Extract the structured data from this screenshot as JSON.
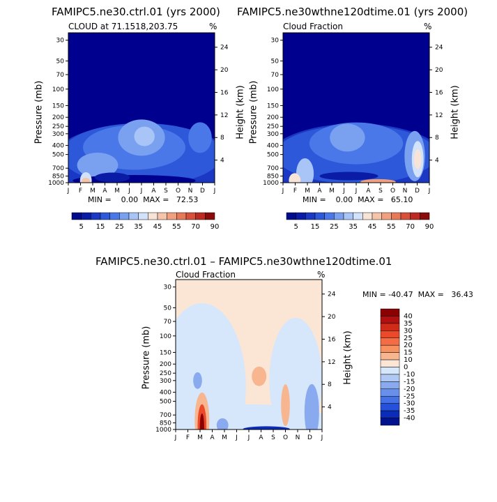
{
  "colors": {
    "background": "#ffffff",
    "saturated": "#00008f",
    "axis": "#000000"
  },
  "chart_data": [
    {
      "type": "heatmap",
      "title": "FAMIPC5.ne30.ctrl.01 (yrs 2000)",
      "subtitle_left": "CLOUD at 71.1518,203.75",
      "subtitle_right": "%",
      "ylabel": "Pressure (mb)",
      "ylabel_right": "Height (km)",
      "x_ticks": [
        "J",
        "F",
        "M",
        "A",
        "M",
        "J",
        "J",
        "A",
        "S",
        "O",
        "N",
        "D",
        "J"
      ],
      "y_ticks": [
        "30",
        "50",
        "70",
        "100",
        "150",
        "200",
        "250",
        "300",
        "400",
        "500",
        "700",
        "850",
        "1000"
      ],
      "y_ticks_right": [
        "24",
        "20",
        "16",
        "12",
        "8",
        "4"
      ],
      "min_max": "MIN =    0.00  MAX =   72.53",
      "colorbar": {
        "labels": [
          "5",
          "15",
          "25",
          "35",
          "45",
          "55",
          "70",
          "90"
        ],
        "colors": [
          "#000c8b",
          "#0a1ba5",
          "#1a38c4",
          "#2e58da",
          "#4a78e8",
          "#7aa0f0",
          "#a9c4f6",
          "#d3e2fb",
          "#f8e4d6",
          "#f6c4a8",
          "#f0a07e",
          "#e67a58",
          "#d6503a",
          "#bc2a22",
          "#8b0a0a"
        ]
      }
    },
    {
      "type": "heatmap",
      "title": "FAMIPC5.ne30wthne120dtime.01 (yrs 2000)",
      "subtitle_left": "Cloud Fraction",
      "subtitle_right": "%",
      "ylabel": "Pressure (mb)",
      "ylabel_right": "Height (km)",
      "x_ticks": [
        "J",
        "F",
        "M",
        "A",
        "M",
        "J",
        "J",
        "A",
        "S",
        "O",
        "N",
        "D",
        "J"
      ],
      "y_ticks": [
        "30",
        "50",
        "70",
        "100",
        "150",
        "200",
        "250",
        "300",
        "400",
        "500",
        "700",
        "850",
        "1000"
      ],
      "y_ticks_right": [
        "24",
        "20",
        "16",
        "12",
        "8",
        "4"
      ],
      "min_max": "MIN =    0.00  MAX =   65.10",
      "colorbar": {
        "labels": [
          "5",
          "15",
          "25",
          "35",
          "45",
          "55",
          "70",
          "90"
        ],
        "colors": [
          "#000c8b",
          "#0a1ba5",
          "#1a38c4",
          "#2e58da",
          "#4a78e8",
          "#7aa0f0",
          "#a9c4f6",
          "#d3e2fb",
          "#f8e4d6",
          "#f6c4a8",
          "#f0a07e",
          "#e67a58",
          "#d6503a",
          "#bc2a22",
          "#8b0a0a"
        ]
      }
    },
    {
      "type": "heatmap",
      "title": "FAMIPC5.ne30.ctrl.01 – FAMIPC5.ne30wthne120dtime.01",
      "subtitle_left": "Cloud Fraction",
      "subtitle_right": "%",
      "ylabel": "Pressure (mb)",
      "ylabel_right": "Height (km)",
      "x_ticks": [
        "J",
        "F",
        "M",
        "A",
        "M",
        "J",
        "J",
        "A",
        "S",
        "O",
        "N",
        "D",
        "J"
      ],
      "y_ticks": [
        "30",
        "50",
        "70",
        "100",
        "150",
        "200",
        "250",
        "300",
        "400",
        "500",
        "700",
        "850",
        "1000"
      ],
      "y_ticks_right": [
        "24",
        "20",
        "16",
        "12",
        "8",
        "4"
      ],
      "min_max": "MIN = -40.47  MAX =   36.43",
      "colorbar": {
        "labels": [
          "40",
          "35",
          "30",
          "25",
          "20",
          "15",
          "10",
          "0",
          "-10",
          "-15",
          "-20",
          "-25",
          "-30",
          "-35",
          "-40"
        ],
        "colors": [
          "#8b0000",
          "#b01010",
          "#d02a18",
          "#ea4a2a",
          "#f46c44",
          "#f7915f",
          "#f8b690",
          "#fbe6d6",
          "#d6e6fb",
          "#b0c8f4",
          "#8aaaef",
          "#6890ea",
          "#4472e6",
          "#2550dc",
          "#0a2cb8",
          "#00128e"
        ]
      }
    }
  ]
}
